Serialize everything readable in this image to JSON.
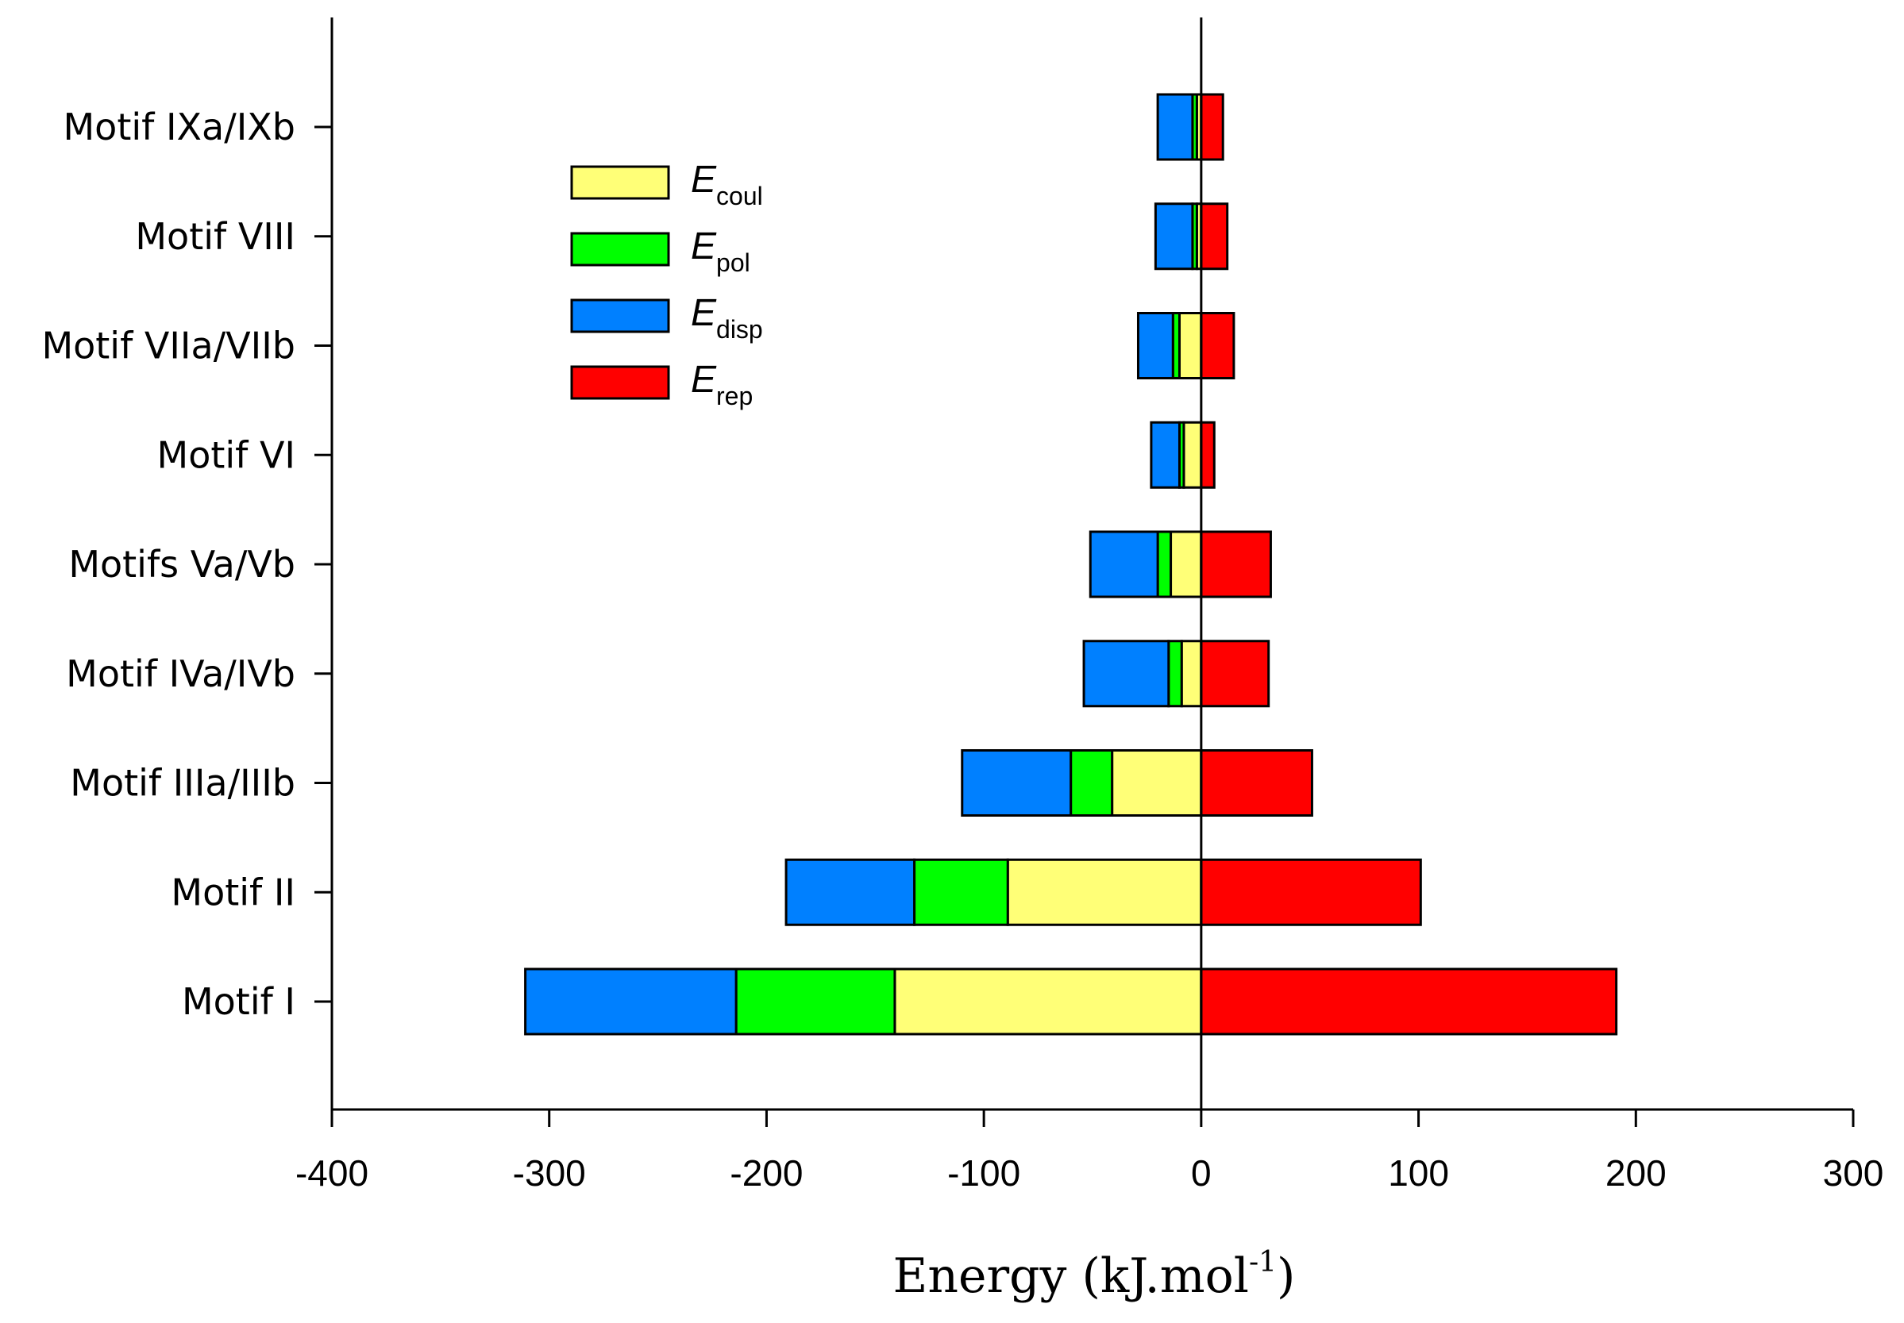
{
  "chart_data": {
    "type": "bar",
    "orientation": "horizontal",
    "stacked": true,
    "xlabel_main": "Energy (kJ.mol",
    "xlabel_sup": "-1",
    "xlabel_close": ")",
    "xlim": [
      -400,
      300
    ],
    "xticks": [
      -400,
      -300,
      -200,
      -100,
      0,
      100,
      200,
      300
    ],
    "categories": [
      "Motif I",
      "Motif II",
      "Motif IIIa/IIIb",
      "Motif IVa/IVb",
      "Motifs Va/Vb",
      "Motif VI",
      "Motif VIIa/VIIb",
      "Motif VIII",
      "Motif IXa/IXb"
    ],
    "series": [
      {
        "name": "coul",
        "symbol": "E",
        "sub": "coul",
        "color": "#ffff77",
        "values": [
          -141,
          -89,
          -41,
          -9,
          -14,
          -8,
          -10,
          -2,
          -2
        ]
      },
      {
        "name": "pol",
        "symbol": "E",
        "sub": "pol",
        "color": "#00ff00",
        "values": [
          -73,
          -43,
          -19,
          -6,
          -6,
          -2,
          -3,
          -2,
          -2
        ]
      },
      {
        "name": "disp",
        "symbol": "E",
        "sub": "disp",
        "color": "#0080ff",
        "values": [
          -97,
          -59,
          -50,
          -39,
          -31,
          -13,
          -16,
          -17,
          -16
        ]
      },
      {
        "name": "rep",
        "symbol": "E",
        "sub": "rep",
        "color": "#ff0000",
        "values": [
          191,
          101,
          51,
          31,
          32,
          6,
          15,
          12,
          10
        ]
      }
    ],
    "legend_position": "top-left"
  }
}
